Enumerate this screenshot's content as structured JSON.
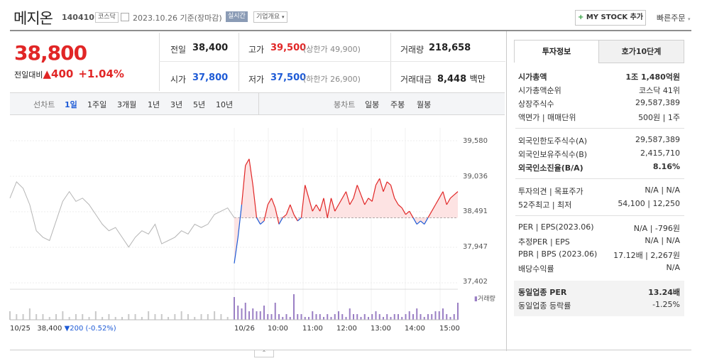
{
  "header": {
    "name": "메지온",
    "code": "140410",
    "market": "코스닥",
    "date": "2023.10.26",
    "basis": "기준(장마감)",
    "realtime": "실시간",
    "company": "기업개요",
    "mystock": "MY STOCK 추가",
    "quick": "빠른주문"
  },
  "quote": {
    "price": "38,800",
    "vs_label": "전일대비",
    "diff": "400",
    "pct": "+1.04%",
    "prev_label": "전일",
    "prev": "38,400",
    "open_label": "시가",
    "open": "37,800",
    "high_label": "고가",
    "high": "39,500",
    "upper": "(상한가 49,900)",
    "low_label": "저가",
    "low": "37,500",
    "lower": "(하한가 26,900)",
    "vol_label": "거래량",
    "vol": "218,658",
    "amt_label": "거래대금",
    "amt": "8,448",
    "amt_unit": "백만"
  },
  "toolbar": {
    "line_label": "선차트",
    "periods": [
      "1일",
      "1주일",
      "3개월",
      "1년",
      "3년",
      "5년",
      "10년"
    ],
    "candle_label": "봉차트",
    "candles": [
      "일봉",
      "주봉",
      "월봉"
    ]
  },
  "chart_data": {
    "type": "line",
    "y_ticks": [
      "39,580",
      "39,036",
      "38,491",
      "37,947",
      "37,402"
    ],
    "x_ticks": [
      "10/26",
      "10:00",
      "11:00",
      "12:00",
      "13:00",
      "14:00",
      "15:00"
    ],
    "prev_close": 38400,
    "volume_label": "거래량",
    "prev_day": {
      "date": "10/25",
      "close": "38,400",
      "change": "▼200",
      "pct": "(-0.52%)"
    },
    "series_prev": [
      38700,
      38950,
      38850,
      38600,
      38200,
      38100,
      38050,
      38350,
      38650,
      38800,
      38650,
      38700,
      38600,
      38450,
      38300,
      38200,
      38250,
      38100,
      37950,
      38100,
      38200,
      38150,
      38300,
      38000,
      38050,
      38100,
      38200,
      38150,
      38300,
      38250,
      38300,
      38450,
      38500,
      38550,
      38400
    ],
    "series_today": [
      37700,
      38100,
      38600,
      39200,
      39300,
      38900,
      38400,
      38300,
      38350,
      38600,
      38700,
      38550,
      38300,
      38400,
      38450,
      38600,
      38450,
      38350,
      38400,
      38900,
      38700,
      38500,
      38600,
      38500,
      38700,
      38400,
      38700,
      38500,
      38600,
      38700,
      38800,
      38600,
      38700,
      38900,
      38750,
      38600,
      38700,
      38650,
      38900,
      39000,
      38800,
      38950,
      38900,
      38700,
      38600,
      38550,
      38450,
      38500,
      38400,
      38300,
      38350,
      38300,
      38400,
      38500,
      38600,
      38700,
      38800,
      38600,
      38700,
      38750,
      38800
    ],
    "volumes_prev": [
      3,
      2,
      2,
      4,
      2,
      2,
      1,
      2,
      3,
      1,
      2,
      2,
      1,
      3,
      1,
      2,
      1,
      1,
      2,
      2,
      1,
      3,
      2,
      2,
      1,
      2,
      3,
      2,
      1,
      2,
      2,
      3,
      2,
      1,
      4
    ],
    "volumes_today": [
      8,
      5,
      4,
      6,
      3,
      4,
      3,
      3,
      5,
      2,
      2,
      6,
      2,
      1,
      2,
      1,
      9,
      2,
      2,
      1,
      1,
      3,
      2,
      2,
      1,
      2,
      1,
      2,
      3,
      2,
      1,
      4,
      2,
      2,
      1,
      2,
      1,
      2,
      3,
      2,
      1,
      2,
      1,
      2,
      2,
      1,
      2,
      3,
      2,
      4,
      2,
      1,
      2,
      2,
      3,
      3,
      4,
      2,
      1,
      2,
      6
    ]
  },
  "invest": {
    "tabs": [
      "투자정보",
      "호가10단계"
    ],
    "rows": [
      {
        "k": "시가총액",
        "v": "1조 1,480억원"
      },
      {
        "k": "시가총액순위",
        "v": "코스닥 41위"
      },
      {
        "k": "상장주식수",
        "v": "29,587,389"
      },
      {
        "k": "액면가 | 매매단위",
        "v": "500원 | 1주"
      },
      {
        "k": "외국인한도주식수(A)",
        "v": "29,587,389"
      },
      {
        "k": "외국인보유주식수(B)",
        "v": "2,415,710"
      },
      {
        "k": "외국인소진율(B/A)",
        "v": "8.16%"
      },
      {
        "k": "투자의견 | 목표주가",
        "v": "N/A | N/A"
      },
      {
        "k": "52주최고 | 최저",
        "v": "54,100 | 12,250"
      },
      {
        "k": "PER | EPS(2023.06)",
        "v": "N/A | -796원"
      },
      {
        "k": "추정PER | EPS",
        "v": "N/A | N/A"
      },
      {
        "k": "PBR | BPS (2023.06)",
        "v": "17.12배 | 2,267원"
      },
      {
        "k": "배당수익률",
        "v": "N/A"
      },
      {
        "k": "동일업종 PER",
        "v": "13.24배"
      },
      {
        "k": "동일업종 등락률",
        "v": "-1.25%"
      }
    ]
  },
  "colors": {
    "up": "#e12626",
    "down": "#1e5bd6",
    "prev_line": "#b5b5b5",
    "volume": "#9a7fc4"
  }
}
